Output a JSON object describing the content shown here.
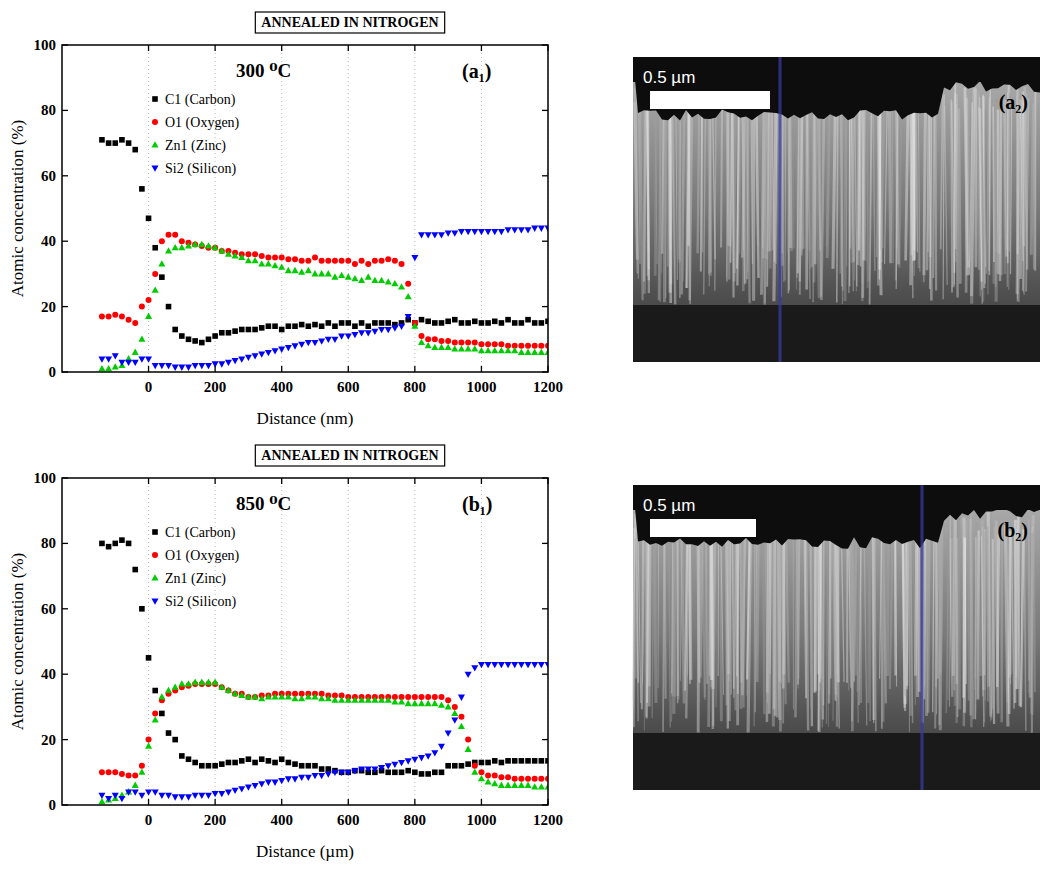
{
  "chart_data": [
    {
      "type": "scatter",
      "title": "ANNEALED IN NITROGEN",
      "subtitle": "300 ⁰C",
      "panel_label": "(a₁)",
      "x_label": "Distance (nm)",
      "y_label": "Atomic concentration (%)",
      "xlim": [
        -260,
        1200
      ],
      "ylim": [
        0,
        100
      ],
      "xticks": [
        0,
        200,
        400,
        600,
        800,
        1000,
        1200
      ],
      "yticks": [
        0,
        20,
        40,
        60,
        80,
        100
      ],
      "grid": true,
      "legend": "upper left",
      "x": [
        -140,
        -120,
        -100,
        -80,
        -60,
        -40,
        -20,
        0,
        20,
        40,
        60,
        80,
        100,
        120,
        140,
        160,
        180,
        200,
        220,
        240,
        260,
        280,
        300,
        320,
        340,
        360,
        380,
        400,
        420,
        440,
        460,
        480,
        500,
        520,
        540,
        560,
        580,
        600,
        620,
        640,
        660,
        680,
        700,
        720,
        740,
        760,
        780,
        800,
        820,
        840,
        860,
        880,
        900,
        920,
        940,
        960,
        980,
        1000,
        1020,
        1040,
        1060,
        1080,
        1100,
        1120,
        1140,
        1160,
        1180,
        1200
      ],
      "series": [
        {
          "name": "C1 (Carbon)",
          "color": "#000000",
          "marker": "square",
          "values": [
            71,
            70,
            70,
            71,
            70,
            68,
            56,
            47,
            38,
            29,
            20,
            13,
            11,
            10,
            9.5,
            9,
            10,
            11,
            12,
            12,
            12.5,
            13,
            13,
            13,
            13.5,
            14,
            14,
            13,
            14,
            14,
            14.5,
            14,
            14.5,
            14,
            15,
            14,
            15,
            15,
            14,
            15,
            14,
            15,
            15,
            15,
            14.5,
            15,
            16,
            15,
            16,
            15.5,
            15,
            15,
            15.5,
            16,
            15,
            15,
            15.5,
            15,
            15,
            15.5,
            15,
            16,
            15,
            15,
            16,
            15,
            15,
            15.5
          ]
        },
        {
          "name": "O1 (Oxygen)",
          "color": "#ff0000",
          "marker": "circle",
          "values": [
            17,
            17,
            17.5,
            17,
            16,
            15,
            20,
            22,
            30,
            40,
            42,
            42,
            40,
            39.5,
            39,
            38.5,
            38,
            38,
            37,
            37,
            36.5,
            36,
            36,
            36,
            35.5,
            35,
            35,
            35,
            34.5,
            34.5,
            34,
            34,
            35,
            34,
            34,
            34,
            34,
            34,
            33,
            34,
            33,
            34,
            34,
            34.5,
            34,
            33,
            27,
            15,
            11,
            10,
            10,
            9.5,
            9.5,
            9,
            9,
            9,
            9,
            8.5,
            8.5,
            8.5,
            8.5,
            8,
            8,
            8,
            8,
            8,
            8,
            8
          ]
        },
        {
          "name": "Zn1 (Zinc)",
          "color": "#00cc00",
          "marker": "triangle-up",
          "values": [
            1,
            1,
            1.5,
            2,
            4,
            6,
            10,
            17,
            25,
            33,
            37,
            38,
            38,
            38.5,
            39,
            39,
            38.5,
            38,
            37,
            36,
            35.5,
            35,
            34,
            34,
            33,
            33,
            32.5,
            32,
            31,
            31,
            30.5,
            31,
            30,
            30,
            30,
            29,
            29.5,
            29,
            28.5,
            28,
            29,
            28,
            28,
            27.5,
            27,
            26,
            23,
            14,
            9,
            8,
            7.5,
            7.5,
            7.5,
            7,
            7,
            7,
            7,
            6.5,
            6.5,
            6.5,
            6.5,
            6.5,
            6.5,
            6,
            6,
            6,
            6,
            6
          ]
        },
        {
          "name": "Si2 (Silicon)",
          "color": "#0000ff",
          "marker": "triangle-down",
          "values": [
            4,
            4,
            5,
            3,
            3,
            3,
            4,
            4,
            2,
            2,
            2,
            1.5,
            1.5,
            1.5,
            2,
            2,
            2,
            2.5,
            2.5,
            3,
            3.5,
            4,
            4.5,
            5,
            5.5,
            6,
            6.5,
            7,
            7.5,
            8,
            8.5,
            9,
            9,
            9.5,
            10,
            10,
            11,
            11,
            11.5,
            12,
            12,
            12.5,
            13,
            13,
            13.5,
            14,
            17,
            35,
            42,
            42,
            42,
            42,
            42.5,
            42.5,
            43,
            43,
            43,
            43,
            43,
            43,
            43,
            43.5,
            43.5,
            43.5,
            43.5,
            44,
            44,
            44
          ]
        }
      ]
    },
    {
      "type": "scatter",
      "title": "ANNEALED IN NITROGEN",
      "subtitle": "850 ⁰C",
      "panel_label": "(b₁)",
      "x_label": "Distance (µm)",
      "y_label": "Atomic concentration (%)",
      "xlim": [
        -260,
        1200
      ],
      "ylim": [
        0,
        100
      ],
      "xticks": [
        0,
        200,
        400,
        600,
        800,
        1000,
        1200
      ],
      "yticks": [
        0,
        20,
        40,
        60,
        80,
        100
      ],
      "grid": true,
      "legend": "upper left",
      "x": [
        -140,
        -120,
        -100,
        -80,
        -60,
        -40,
        -20,
        0,
        20,
        40,
        60,
        80,
        100,
        120,
        140,
        160,
        180,
        200,
        220,
        240,
        260,
        280,
        300,
        320,
        340,
        360,
        380,
        400,
        420,
        440,
        460,
        480,
        500,
        520,
        540,
        560,
        580,
        600,
        620,
        640,
        660,
        680,
        700,
        720,
        740,
        760,
        780,
        800,
        820,
        840,
        860,
        880,
        900,
        920,
        940,
        960,
        980,
        1000,
        1020,
        1040,
        1060,
        1080,
        1100,
        1120,
        1140,
        1160,
        1180,
        1200
      ],
      "series": [
        {
          "name": "C1 (Carbon)",
          "color": "#000000",
          "marker": "square",
          "values": [
            80,
            79,
            80,
            81,
            80,
            72,
            60,
            45,
            35,
            28,
            22,
            20,
            15,
            14,
            13,
            12,
            12,
            12,
            12.5,
            13,
            13,
            13.5,
            14,
            13,
            14,
            13.5,
            13,
            14,
            13,
            12.5,
            12,
            12,
            12,
            11,
            11,
            10.5,
            10,
            10,
            10.5,
            10.5,
            10,
            10,
            10.5,
            10,
            10,
            10,
            10.5,
            10,
            9.5,
            9.5,
            10,
            10,
            12,
            12,
            12,
            12.5,
            13,
            13,
            13,
            13.5,
            13,
            13.5,
            13.5,
            13.5,
            13.5,
            13.5,
            13.5,
            13.5
          ]
        },
        {
          "name": "O1 (Oxygen)",
          "color": "#ff0000",
          "marker": "circle",
          "values": [
            10,
            10,
            10,
            9.5,
            9,
            9,
            12,
            20,
            28,
            32,
            34,
            35,
            36,
            36.5,
            37,
            37,
            37,
            37,
            36,
            35,
            34,
            34,
            33,
            33,
            33.5,
            33.5,
            34,
            34,
            34,
            34,
            34,
            34,
            34,
            34,
            33.5,
            33.5,
            33.5,
            33,
            33,
            33,
            33,
            33,
            33,
            33,
            33,
            33,
            33,
            33,
            33,
            33,
            33,
            33,
            32,
            30,
            27,
            20,
            12,
            10,
            9,
            9,
            8.5,
            8.5,
            8,
            8,
            8,
            8,
            8,
            8
          ]
        },
        {
          "name": "Zn1 (Zinc)",
          "color": "#00cc00",
          "marker": "triangle-up",
          "values": [
            1,
            1.5,
            2,
            3,
            4,
            6,
            10,
            18,
            26,
            33,
            35,
            36,
            37,
            37,
            37.5,
            37.5,
            37.5,
            37.5,
            36,
            35,
            34,
            33.5,
            33,
            33,
            32.5,
            33,
            33,
            33,
            33,
            32.5,
            32.5,
            33,
            33,
            32.5,
            32.5,
            32,
            32,
            32,
            32,
            32,
            32,
            32,
            32,
            32,
            31.5,
            31.5,
            31,
            31,
            31,
            31,
            31,
            30.5,
            30,
            28,
            24,
            17,
            10,
            8,
            7,
            6.5,
            6,
            6,
            6,
            6,
            6,
            5.5,
            5.5,
            5.5
          ]
        },
        {
          "name": "Si2 (Silicon)",
          "color": "#0000ff",
          "marker": "triangle-down",
          "values": [
            3,
            2,
            3,
            2,
            4,
            4,
            3,
            4,
            4,
            3,
            3,
            2.5,
            2.5,
            2.5,
            3,
            3,
            3,
            3.5,
            3.5,
            4,
            4.5,
            5,
            5.5,
            6,
            6.5,
            7,
            7,
            7.5,
            8,
            8,
            8.5,
            8.5,
            9,
            9,
            9.5,
            10,
            10,
            10,
            10.5,
            11,
            11,
            11,
            11.5,
            12,
            12.5,
            13,
            13.5,
            14,
            14.5,
            15,
            16,
            18,
            22,
            26,
            33,
            40,
            42,
            43,
            43,
            43,
            43,
            43,
            43,
            43,
            43,
            43,
            43,
            43
          ]
        }
      ]
    }
  ],
  "micrographs": [
    {
      "panel_label": "(a₂)",
      "scale_bar_label": "0.5 µm"
    },
    {
      "panel_label": "(b₂)",
      "scale_bar_label": "0.5 µm"
    }
  ]
}
